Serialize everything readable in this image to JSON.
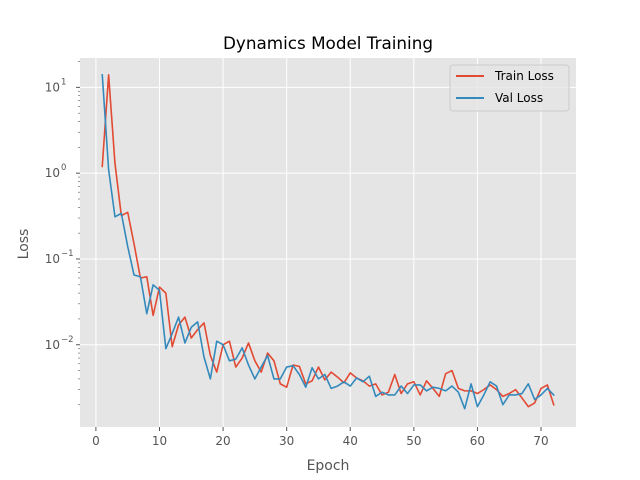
{
  "chart_data": {
    "type": "line",
    "title": "Dynamics Model Training",
    "xlabel": "Epoch",
    "ylabel": "Loss",
    "yscale": "log",
    "xlim": [
      -2.5,
      75.5
    ],
    "ylim": [
      0.0011,
      22
    ],
    "grid": true,
    "legend_position": "top-right",
    "x_ticks": [
      0,
      10,
      20,
      30,
      40,
      50,
      60,
      70
    ],
    "x_tick_labels": [
      "0",
      "10",
      "20",
      "30",
      "40",
      "50",
      "60",
      "70"
    ],
    "y_ticks": [
      0.01,
      0.1,
      1,
      10
    ],
    "y_tick_labels": [
      "10",
      "10",
      "10",
      "10"
    ],
    "y_tick_exponents": [
      "−2",
      "−1",
      "0",
      "1"
    ],
    "x": [
      1,
      2,
      3,
      4,
      5,
      6,
      7,
      8,
      9,
      10,
      11,
      12,
      13,
      14,
      15,
      16,
      17,
      18,
      19,
      20,
      21,
      22,
      23,
      24,
      25,
      26,
      27,
      28,
      29,
      30,
      31,
      32,
      33,
      34,
      35,
      36,
      37,
      38,
      39,
      40,
      41,
      42,
      43,
      44,
      45,
      46,
      47,
      48,
      49,
      50,
      51,
      52,
      53,
      54,
      55,
      56,
      57,
      58,
      59,
      60,
      61,
      62,
      63,
      64,
      65,
      66,
      67,
      68,
      69,
      70,
      71,
      72
    ],
    "series": [
      {
        "name": "Train Loss",
        "color": "#E24A33",
        "values": [
          1.2,
          14,
          1.3,
          0.32,
          0.35,
          0.15,
          0.06,
          0.062,
          0.022,
          0.047,
          0.04,
          0.0095,
          0.017,
          0.021,
          0.012,
          0.015,
          0.018,
          0.0075,
          0.0048,
          0.01,
          0.011,
          0.0055,
          0.007,
          0.0105,
          0.0065,
          0.0048,
          0.008,
          0.0065,
          0.0035,
          0.0032,
          0.0058,
          0.0056,
          0.0035,
          0.0038,
          0.0055,
          0.0039,
          0.0048,
          0.0042,
          0.0036,
          0.0047,
          0.0041,
          0.0038,
          0.0033,
          0.0035,
          0.0026,
          0.0028,
          0.0045,
          0.0027,
          0.0035,
          0.0037,
          0.0026,
          0.0038,
          0.0031,
          0.0025,
          0.0046,
          0.005,
          0.0031,
          0.0029,
          0.0029,
          0.0027,
          0.003,
          0.0034,
          0.003,
          0.0025,
          0.0027,
          0.003,
          0.0024,
          0.0019,
          0.0021,
          0.0031,
          0.0034,
          0.002
        ]
      },
      {
        "name": "Val Loss",
        "color": "#348ABD",
        "values": [
          14,
          1.1,
          0.31,
          0.34,
          0.14,
          0.065,
          0.062,
          0.023,
          0.05,
          0.043,
          0.009,
          0.0135,
          0.021,
          0.0105,
          0.016,
          0.0185,
          0.0072,
          0.004,
          0.011,
          0.01,
          0.0065,
          0.0068,
          0.0092,
          0.0058,
          0.004,
          0.0055,
          0.0075,
          0.004,
          0.004,
          0.0055,
          0.0057,
          0.0045,
          0.0032,
          0.0054,
          0.004,
          0.0045,
          0.0031,
          0.0033,
          0.0037,
          0.0033,
          0.0041,
          0.0037,
          0.0043,
          0.0025,
          0.0028,
          0.0026,
          0.0026,
          0.0033,
          0.0027,
          0.0034,
          0.0034,
          0.0029,
          0.0032,
          0.0031,
          0.0029,
          0.0033,
          0.0028,
          0.0018,
          0.0035,
          0.0019,
          0.0026,
          0.0037,
          0.0033,
          0.002,
          0.0026,
          0.0026,
          0.0027,
          0.0035,
          0.0023,
          0.0026,
          0.0031,
          0.0026
        ]
      }
    ]
  }
}
